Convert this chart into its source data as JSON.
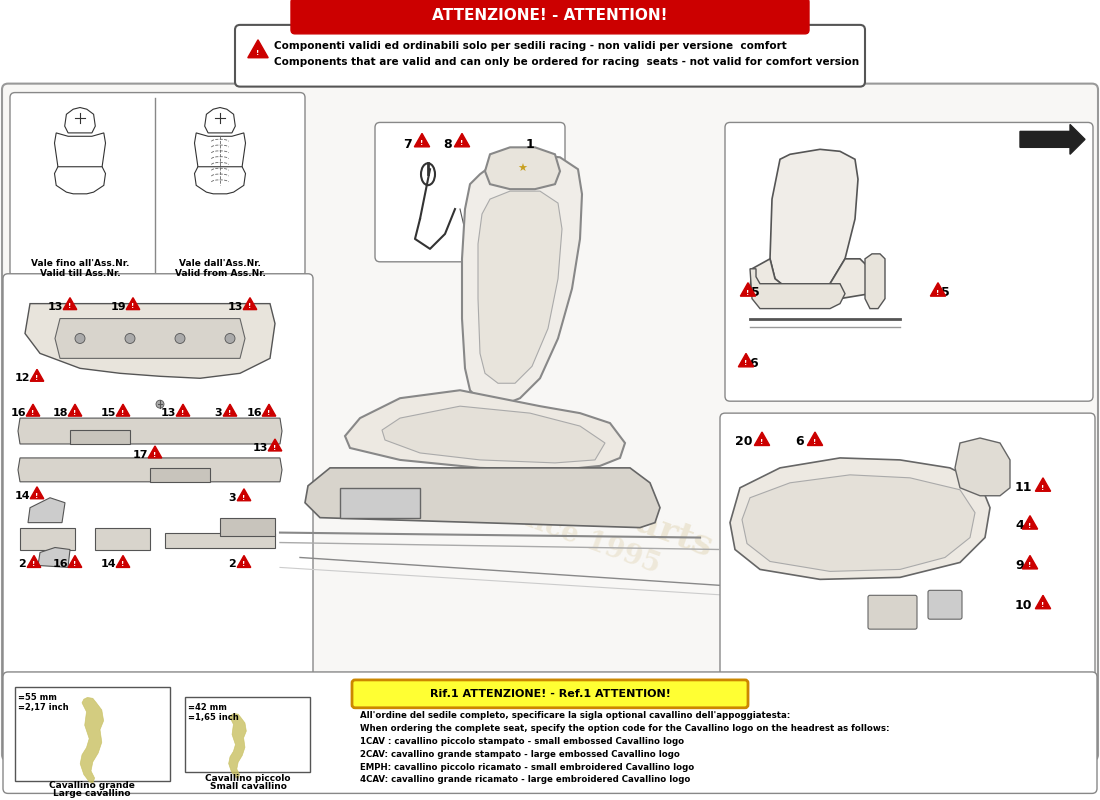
{
  "title": "ATTENZIONE! - ATTENTION!",
  "warning_text_line1": "Componenti validi ed ordinabili solo per sedili racing - non validi per versione  comfort",
  "warning_text_line2": "Components that are valid and can only be ordered for racing  seats - not valid for comfort version",
  "ref1_label": "Rif.1 ATTENZIONE! - Ref.1 ATTENTION!",
  "ref1_line1": "All'ordine del sedile completo, specificare la sigla optional cavallino dell'appoggiatesta:",
  "ref1_line2": "When ordering the complete seat, specify the option code for the Cavallino logo on the headrest as follows:",
  "ref1_line3": "1CAV : cavallino piccolo stampato - small embossed Cavallino logo",
  "ref1_line4": "2CAV: cavallino grande stampato - large embossed Cavallino logo",
  "ref1_line5": "EMPH: cavallino piccolo ricamato - small embroidered Cavallino logo",
  "ref1_line6": "4CAV: cavallino grande ricamato - large embroidered Cavallino logo",
  "valid_till_line1": "Vale fino all'Ass.Nr.",
  "valid_till_line2": "Valid till Ass.Nr.",
  "valid_from_line1": "Vale dall'Ass.Nr.",
  "valid_from_line2": "Valid from Ass.Nr.",
  "cav_grande_l1": "Cavallino grande",
  "cav_grande_l2": "Large cavallino",
  "cav_piccolo_l1": "Cavallino piccolo",
  "cav_piccolo_l2": "Small cavallino",
  "size_grande_l1": "=55 mm",
  "size_grande_l2": "=2,17 inch",
  "size_piccolo_l1": "=42 mm",
  "size_piccolo_l2": "=1,65 inch",
  "bg_color": "#f0ede8",
  "white": "#ffffff",
  "red": "#cc0000",
  "yellow": "#ffff33",
  "dark": "#1a1a1a",
  "gray": "#888888",
  "light_gray": "#dddddd",
  "panel_bg": "#f8f7f5"
}
